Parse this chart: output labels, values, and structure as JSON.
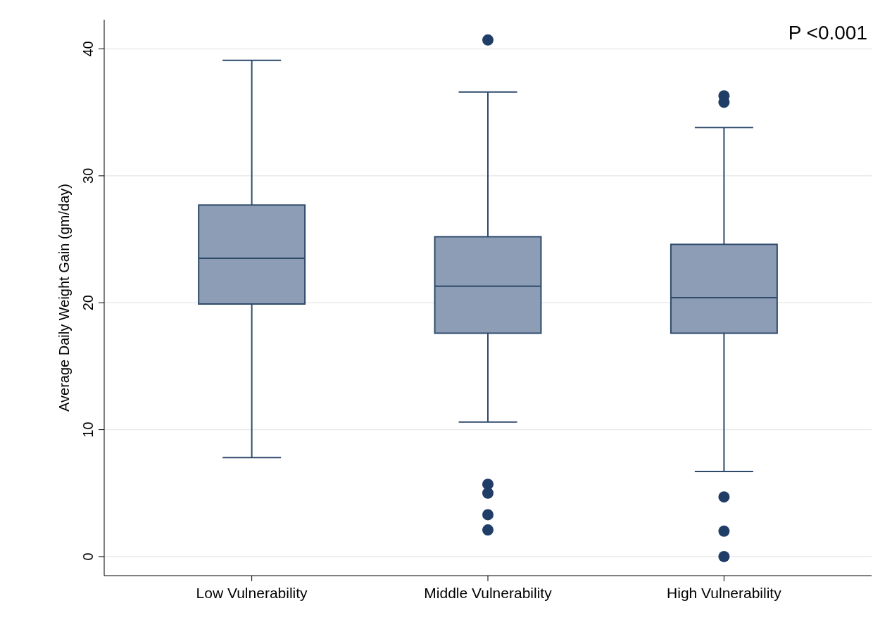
{
  "chart_data": {
    "type": "box",
    "ylabel": "Average Daily Weight Gain (gm/day)",
    "categories": [
      "Low Vulnerability",
      "Middle Vulnerability",
      "High Vulnerability"
    ],
    "boxes": [
      {
        "low": 7.8,
        "q1": 19.9,
        "median": 23.5,
        "q3": 27.7,
        "high": 39.1
      },
      {
        "low": 10.6,
        "q1": 17.6,
        "median": 21.3,
        "q3": 25.2,
        "high": 36.6,
        "outliers": [
          40.7,
          5.7,
          5.0,
          3.3,
          2.1
        ]
      },
      {
        "low": 6.7,
        "q1": 17.6,
        "median": 20.4,
        "q3": 24.6,
        "high": 33.8,
        "outliers": [
          36.3,
          35.8,
          4.7,
          2.0,
          0
        ]
      }
    ],
    "color": "#8d9db5",
    "ylim": [
      -1.5,
      42.3
    ],
    "yticks": [
      0,
      10,
      20,
      30,
      40
    ],
    "grid": "y",
    "annotations": [
      "P <0.001"
    ]
  }
}
